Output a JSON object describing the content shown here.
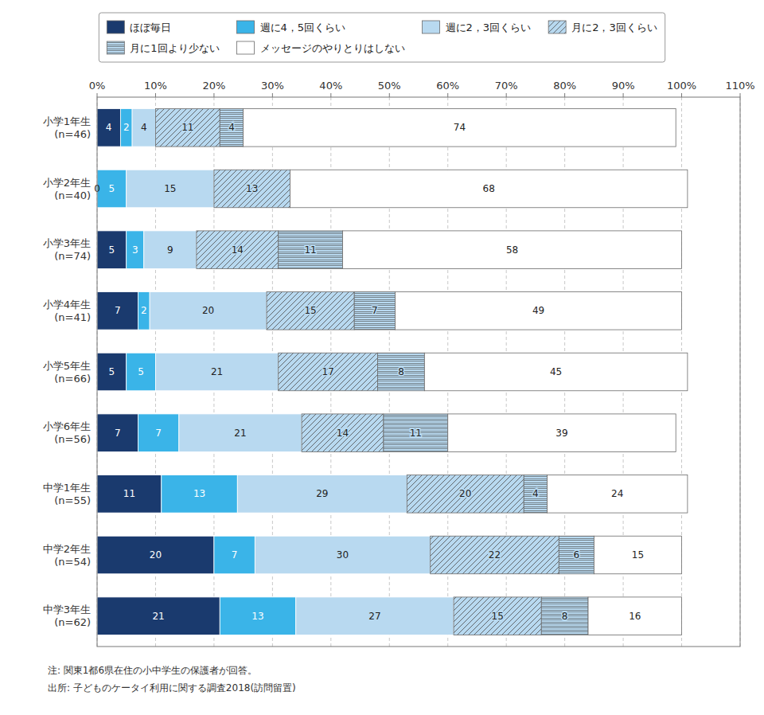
{
  "chart_data": {
    "type": "bar",
    "orientation": "horizontal",
    "stacked": true,
    "data_labels": true,
    "grid": true,
    "legend": "top",
    "categories": [
      "小学1年生\n(n=46)",
      "小学2年生\n(n=40)",
      "小学3年生\n(n=74)",
      "小学4年生\n(n=41)",
      "小学5年生\n(n=66)",
      "小学6年生\n(n=56)",
      "中学1年生\n(n=55)",
      "中学2年生\n(n=54)",
      "中学3年生\n(n=62)"
    ],
    "series": [
      {
        "name": "ほぼ毎日",
        "color": "#1a3a6e",
        "values": [
          4,
          0,
          5,
          7,
          5,
          7,
          11,
          20,
          21
        ]
      },
      {
        "name": "週に4，5回くらい",
        "color": "#3ab4e8",
        "values": [
          2,
          5,
          3,
          2,
          5,
          7,
          13,
          7,
          13
        ]
      },
      {
        "name": "週に2，3回くらい",
        "color": "#b8d9f0",
        "values": [
          4,
          15,
          9,
          20,
          21,
          21,
          29,
          30,
          27
        ]
      },
      {
        "name": "月に2，3回くらい",
        "color": "#b8d9f0",
        "values": [
          11,
          13,
          14,
          15,
          17,
          14,
          20,
          22,
          15
        ]
      },
      {
        "name": "月に1回より少ない",
        "color": "#b8d9f0",
        "values": [
          4,
          0,
          11,
          7,
          8,
          11,
          4,
          6,
          8
        ],
        "value_labels": [
          "4",
          null,
          "11",
          "7",
          "8",
          "11",
          "4",
          "6",
          "8"
        ]
      },
      {
        "name": "メッセージのやりとりはしない",
        "color": "#ffffff",
        "values": [
          74,
          68,
          58,
          49,
          45,
          39,
          24,
          15,
          16
        ]
      }
    ],
    "xlim": [
      0,
      110
    ],
    "xticks": [
      {
        "value": 0,
        "label": "0%"
      },
      {
        "value": 10,
        "label": "10%"
      },
      {
        "value": 20,
        "label": "20%"
      },
      {
        "value": 30,
        "label": "30%"
      },
      {
        "value": 40,
        "label": "40%"
      },
      {
        "value": 50,
        "label": "50%"
      },
      {
        "value": 60,
        "label": "60%"
      },
      {
        "value": 70,
        "label": "70%"
      },
      {
        "value": 80,
        "label": "80%"
      },
      {
        "value": 90,
        "label": "90%"
      },
      {
        "value": 100,
        "label": "100%"
      },
      {
        "value": 110,
        "label": "110%"
      }
    ],
    "annotations": [
      "注: 関東1都6県在住の小中学生の保護者が回答。",
      "出所: 子どものケータイ利用に関する調査2018(訪問留置)"
    ]
  }
}
